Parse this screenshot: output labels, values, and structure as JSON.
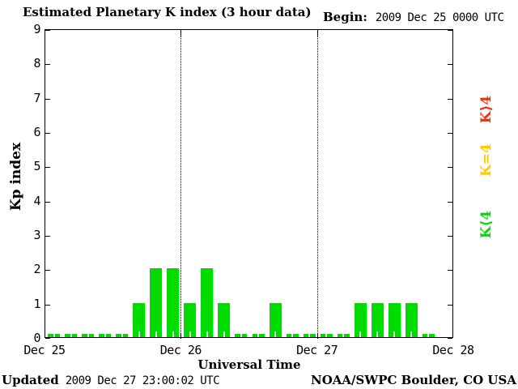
{
  "title": "Estimated Planetary K index (3 hour data)",
  "begin": {
    "label": "Begin:",
    "value": "2009 Dec 25 0000 UTC"
  },
  "footer": {
    "updated_label": "Updated",
    "updated_value": "2009 Dec 27 23:00:02 UTC",
    "credit": "NOAA/SWPC Boulder, CO USA"
  },
  "legend": [
    {
      "label": "K<4",
      "color": "#00DB00"
    },
    {
      "label": "K=4",
      "color": "#FFC800"
    },
    {
      "label": "K>4",
      "color": "#FF2A00"
    }
  ],
  "chart_data": {
    "type": "bar",
    "title": "Estimated Planetary K index (3 hour data)",
    "xlabel": "Universal Time",
    "ylabel": "Kp index",
    "ylim": [
      0,
      9
    ],
    "yticks": [
      0,
      1,
      2,
      3,
      4,
      5,
      6,
      7,
      8,
      9
    ],
    "x_day_labels": [
      "Dec 25",
      "Dec 26",
      "Dec 27",
      "Dec 28"
    ],
    "hours_per_bar": 3,
    "bars_per_day": 8,
    "values": [
      0,
      0,
      0,
      0,
      0,
      1,
      2,
      2,
      1,
      2,
      1,
      0,
      0,
      1,
      0,
      0,
      0,
      0,
      1,
      1,
      1,
      1,
      0,
      null
    ],
    "bar_color": "#00DB00",
    "grid": "dotted vertical lines at day boundaries",
    "legend_position": "right",
    "notes": "last 3-hour period of Dec 27 has no bar (not yet reported)"
  }
}
